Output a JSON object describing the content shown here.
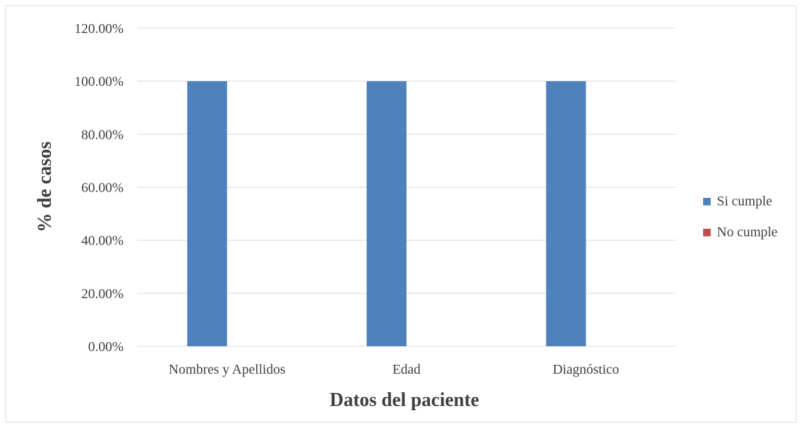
{
  "chart_data": {
    "type": "bar",
    "title": "",
    "xlabel": "Datos del paciente",
    "ylabel": "% de casos",
    "categories": [
      "Nombres y Apellidos",
      "Edad",
      "Diagnóstico"
    ],
    "series": [
      {
        "name": "Si cumple",
        "values": [
          100,
          100,
          100
        ],
        "color": "#4f81bd"
      },
      {
        "name": "No cumple",
        "values": [
          0,
          0,
          0
        ],
        "color": "#c0504d"
      }
    ],
    "ylim": [
      0,
      120
    ],
    "yticks": [
      "0.00%",
      "20.00%",
      "40.00%",
      "60.00%",
      "80.00%",
      "100.00%",
      "120.00%"
    ],
    "grid": true,
    "legend_position": "right",
    "gridline_color": "#d9d9d9"
  }
}
